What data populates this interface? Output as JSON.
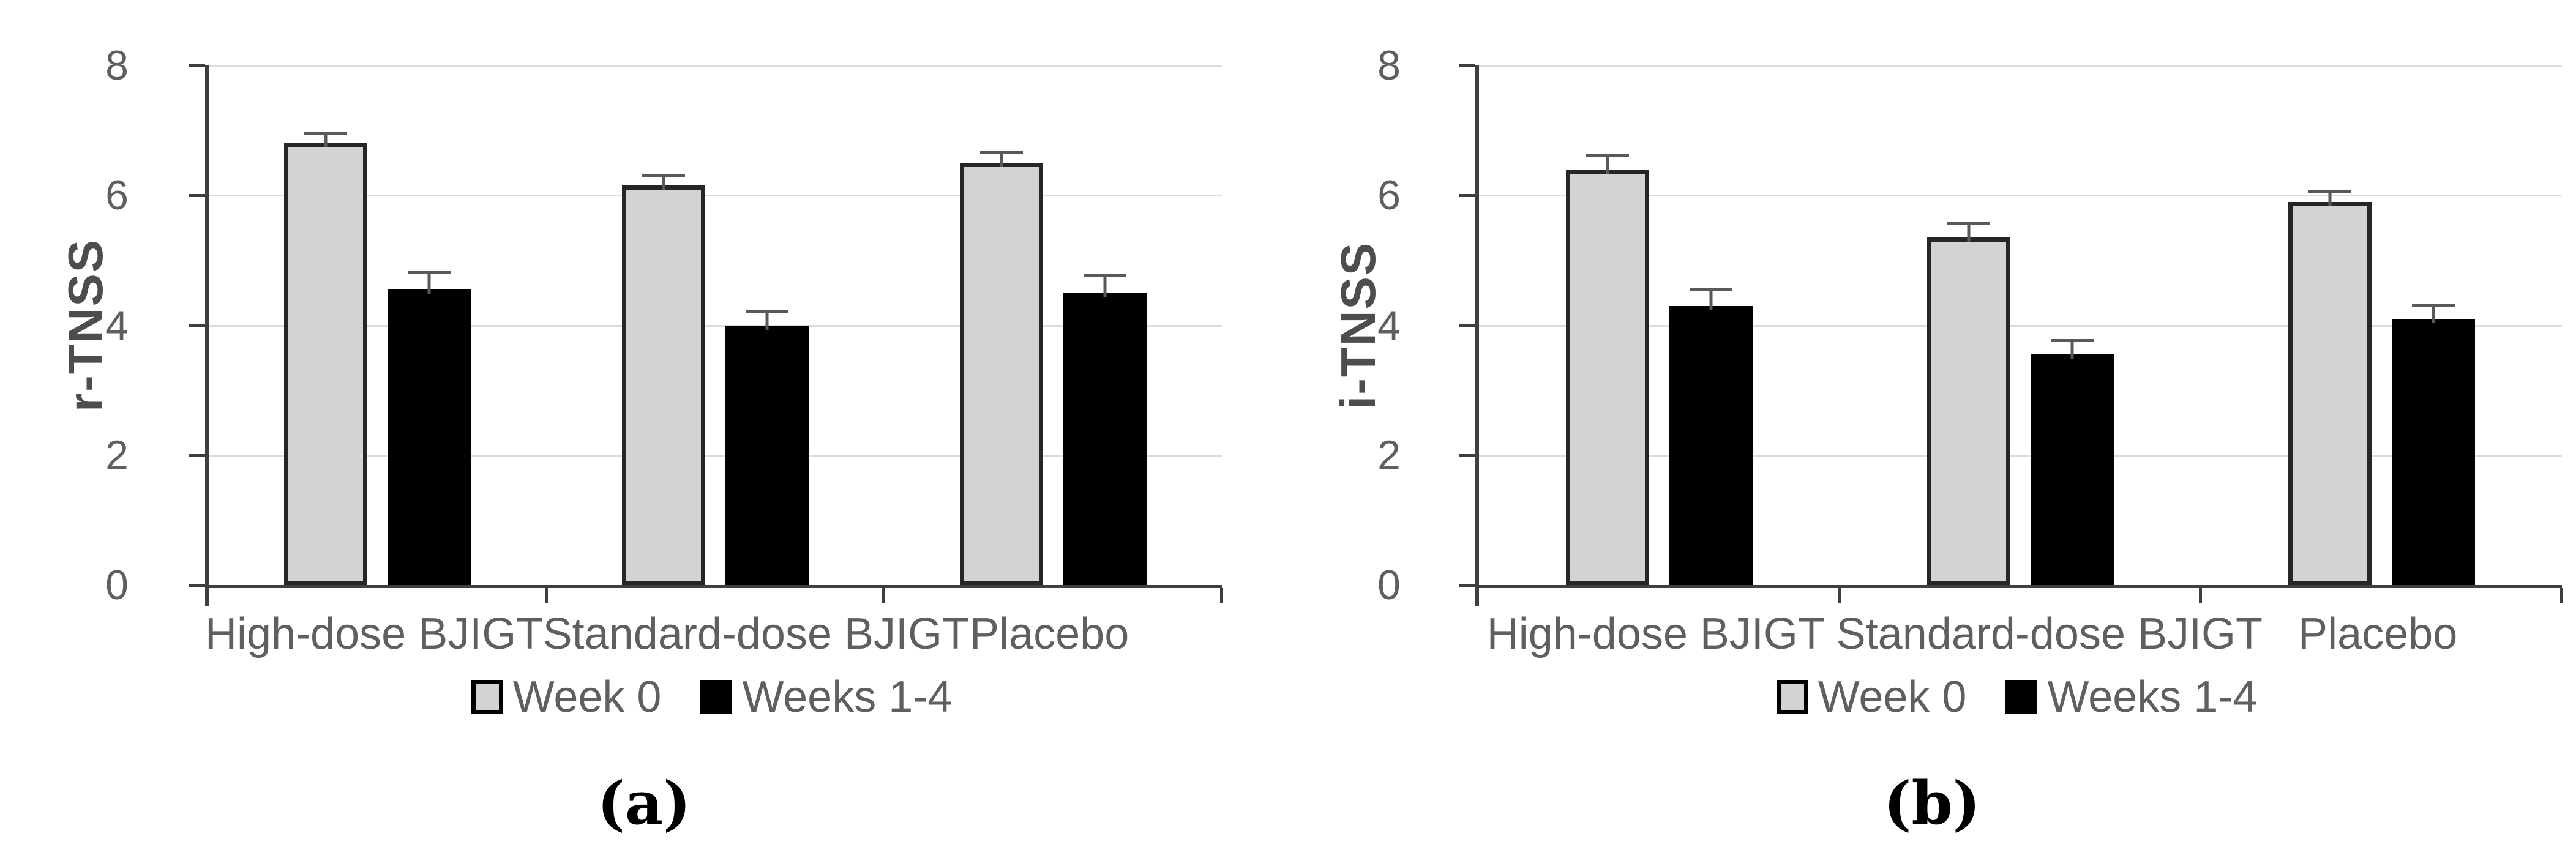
{
  "chart_data": [
    {
      "id": "a",
      "type": "bar",
      "title": "",
      "ylabel": "r-TNSS",
      "xlabel": "",
      "caption": "(a)",
      "categories": [
        "High-dose BJIGT",
        "Standard-dose BJIGT",
        "Placebo"
      ],
      "series": [
        {
          "name": "Week 0",
          "values": [
            6.8,
            6.15,
            6.5
          ],
          "errors_plus": [
            0.25,
            0.25,
            0.25
          ],
          "fill": "#d3d3d3",
          "border": "#262626"
        },
        {
          "name": "Weeks 1-4",
          "values": [
            4.55,
            4.0,
            4.5
          ],
          "errors_plus": [
            0.35,
            0.3,
            0.35
          ],
          "fill": "#000000",
          "border": "#000000"
        }
      ],
      "ylim": [
        0,
        8
      ],
      "yticks": [
        0,
        2,
        4,
        6,
        8
      ],
      "grid": "horizontal",
      "legend_position": "bottom",
      "error_bar_color": "#595959"
    },
    {
      "id": "b",
      "type": "bar",
      "title": "",
      "ylabel": "i-TNSS",
      "xlabel": "",
      "caption": "(b)",
      "categories": [
        "High-dose BJIGT",
        "Standard-dose BJIGT",
        "Placebo"
      ],
      "series": [
        {
          "name": "Week 0",
          "values": [
            6.4,
            5.35,
            5.9
          ],
          "errors_plus": [
            0.3,
            0.3,
            0.25
          ],
          "fill": "#d3d3d3",
          "border": "#262626"
        },
        {
          "name": "Weeks 1-4",
          "values": [
            4.3,
            3.55,
            4.1
          ],
          "errors_plus": [
            0.35,
            0.3,
            0.3
          ],
          "fill": "#000000",
          "border": "#000000"
        }
      ],
      "ylim": [
        0,
        8
      ],
      "yticks": [
        0,
        2,
        4,
        6,
        8
      ],
      "grid": "horizontal",
      "legend_position": "bottom",
      "error_bar_color": "#595959"
    }
  ],
  "colors": {
    "axis": "#3f3f3f",
    "gridline": "#dcdcdc",
    "tick_text": "#5f5f5f",
    "axis_title_text": "#4d4d4d",
    "legend_text": "#5f5f5f",
    "caption_text": "#000000"
  }
}
